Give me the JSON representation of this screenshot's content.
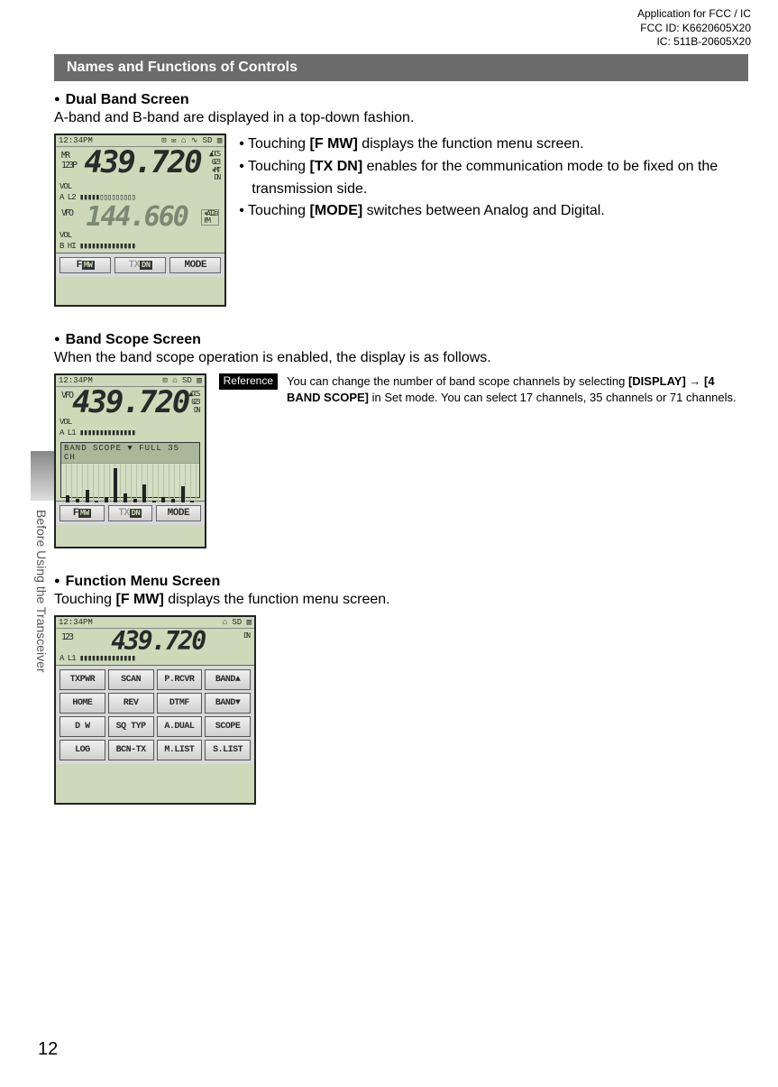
{
  "header": {
    "line1": "Application for FCC / IC",
    "line2": "FCC ID: K6620605X20",
    "line3": "IC: 511B-20605X20"
  },
  "sectionBar": "Names and Functions of Controls",
  "dualBand": {
    "title": "Dual Band Screen",
    "desc": "A-band and B-band are displayed in a top-down fashion.",
    "bullets": [
      "Touching [F MW] displays the function menu screen.",
      "Touching [TX DN] enables for the communication mode to be fixed on the transmission side.",
      "Touching [MODE] switches between Analog and Digital."
    ],
    "screen": {
      "time": "12:34PM",
      "icons": "⊡ ✉ ⌂ ∿ SD ▥",
      "preA": "MR\n123P",
      "freqA": "439.720",
      "postA": "▲DCS\n023\n✶MT\nDN",
      "volA": "VOL",
      "meterA": "A L2 ▮▮▮▮▮▯▯▯▯▯▯▯▯▯",
      "preB": "VFO",
      "freqB": "144.660",
      "postB": "✶A12⊡\nFM",
      "volB": "VOL",
      "meterB": "B HI ▮▮▮▮▮▮▮▮▮▮▮▮▮▮",
      "btn1": "F MW",
      "btn2": "TX DN",
      "btn3": "MODE"
    }
  },
  "bandScope": {
    "title": "Band Scope Screen",
    "desc": "When the band scope operation is enabled, the display is as follows.",
    "refTag": "Reference",
    "refText": "You can change the number of band scope channels by selecting [DISPLAY] → [4 BAND SCOPE] in Set mode. You can select 17 channels, 35 channels or 71 channels.",
    "screen": {
      "time": "12:34PM",
      "icons": "⊡     ⌂    SD ▥",
      "pre": "VFO",
      "freq": "439.720",
      "post": "▲DCS\n023\nDN",
      "vol": "VOL",
      "meter": "A L1 ▮▮▮▮▮▮▮▮▮▮▮▮▮▮",
      "scopeTitle": "BAND SCOPE ▼ FULL  35 CH",
      "bars": [
        8,
        4,
        14,
        2,
        6,
        38,
        10,
        4,
        20,
        2,
        6,
        4,
        18,
        2
      ],
      "btn1": "F MW",
      "btn2": "TX DN",
      "btn3": "MODE"
    }
  },
  "funcMenu": {
    "title": "Function Menu Screen",
    "desc": "Touching [F MW] displays the function menu screen.",
    "screen": {
      "time": "12:34PM",
      "icons": "     ⌂    SD ▥",
      "pre": "123",
      "freq": "439.720",
      "post": "DN",
      "meter": "A L1 ▮▮▮▮▮▮▮▮▮▮▮▮▮▮",
      "buttons": [
        "TXPWR",
        "SCAN",
        "P.RCVR",
        "BAND▲",
        "HOME",
        "REV",
        "DTMF",
        "BAND▼",
        "D W",
        "SQ TYP",
        "A.DUAL",
        "SCOPE",
        "LOG",
        "BCN-TX",
        "M.LIST",
        "S.LIST"
      ]
    }
  },
  "sideLabel": "Before Using the Transceiver",
  "pageNum": "12"
}
